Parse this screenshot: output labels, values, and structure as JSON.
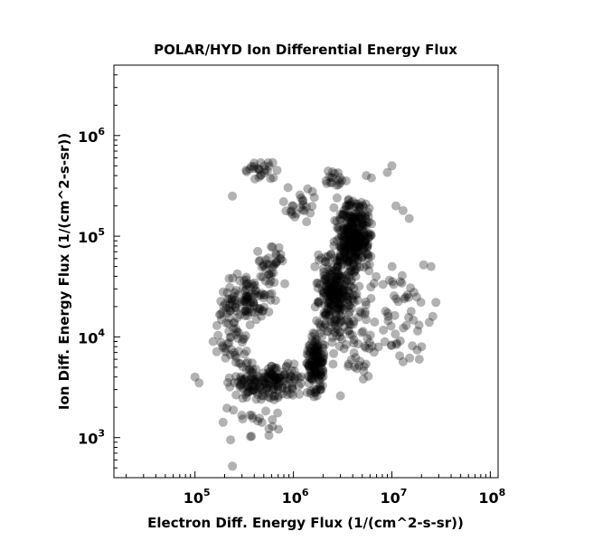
{
  "chart_data": {
    "type": "scatter",
    "title": "POLAR/HYD  Ion Differential Energy Flux",
    "xlabel": "Electron Diff. Energy Flux (1/(cm^2-s-sr))",
    "ylabel": "Ion Diff. Energy Flux (1/(cm^2-s-sr))",
    "x_scale": "log",
    "y_scale": "log",
    "xlim": [
      15000,
      120000000
    ],
    "ylim": [
      400,
      5000000
    ],
    "x_ticks": [
      {
        "value": 100000,
        "base": "10",
        "exp": "5"
      },
      {
        "value": 1000000,
        "base": "10",
        "exp": "6"
      },
      {
        "value": 10000000,
        "base": "10",
        "exp": "7"
      },
      {
        "value": 100000000,
        "base": "10",
        "exp": "8"
      }
    ],
    "y_ticks": [
      {
        "value": 1000,
        "base": "10",
        "exp": "3"
      },
      {
        "value": 10000,
        "base": "10",
        "exp": "4"
      },
      {
        "value": 100000,
        "base": "10",
        "exp": "5"
      },
      {
        "value": 1000000,
        "base": "10",
        "exp": "6"
      }
    ],
    "grid": false,
    "marker_color": "#000000",
    "marker_alpha": 0.3,
    "point_clusters": [
      {
        "x": [
          1300000,
          2200000
        ],
        "y": [
          2300,
          12000
        ],
        "count": 140
      },
      {
        "x": [
          1600000,
          4500000
        ],
        "y": [
          10000,
          80000
        ],
        "count": 260
      },
      {
        "x": [
          2500000,
          6500000
        ],
        "y": [
          40000,
          250000
        ],
        "count": 300
      },
      {
        "x": [
          200000,
          1400000
        ],
        "y": [
          2200,
          6000
        ],
        "count": 180
      },
      {
        "x": [
          170000,
          700000
        ],
        "y": [
          12000,
          45000
        ],
        "count": 110
      },
      {
        "x": [
          400000,
          900000
        ],
        "y": [
          30000,
          90000
        ],
        "count": 35
      },
      {
        "x": [
          300000,
          700000
        ],
        "y": [
          350000,
          600000
        ],
        "count": 25
      },
      {
        "x": [
          1800000,
          3500000
        ],
        "y": [
          300000,
          500000
        ],
        "count": 18
      },
      {
        "x": [
          150000,
          400000
        ],
        "y": [
          4000,
          25000
        ],
        "count": 40
      },
      {
        "x": [
          4000000,
          28000000
        ],
        "y": [
          5000,
          60000
        ],
        "count": 55
      },
      {
        "x": [
          2000000,
          8000000
        ],
        "y": [
          3000,
          30000
        ],
        "count": 60
      },
      {
        "x": [
          700000,
          1800000
        ],
        "y": [
          120000,
          400000
        ],
        "count": 25
      },
      {
        "x": [
          150000,
          1000000
        ],
        "y": [
          900,
          2500
        ],
        "count": 20
      }
    ],
    "points": [
      [
        240000,
        520
      ],
      [
        230000,
        950
      ],
      [
        100000,
        4000
      ],
      [
        110000,
        3500
      ],
      [
        5500000,
        400000
      ],
      [
        6200000,
        380000
      ],
      [
        10000000,
        500000
      ],
      [
        9000000,
        430000
      ],
      [
        25000000,
        50000
      ],
      [
        21000000,
        52000
      ],
      [
        28000000,
        22000
      ],
      [
        26000000,
        16000
      ],
      [
        19000000,
        6000
      ],
      [
        12000000,
        6500
      ],
      [
        20000000,
        8000
      ],
      [
        15000000,
        150000
      ],
      [
        11000000,
        200000
      ],
      [
        13000000,
        180000
      ],
      [
        240000,
        250000
      ],
      [
        3000000,
        2600
      ]
    ]
  }
}
